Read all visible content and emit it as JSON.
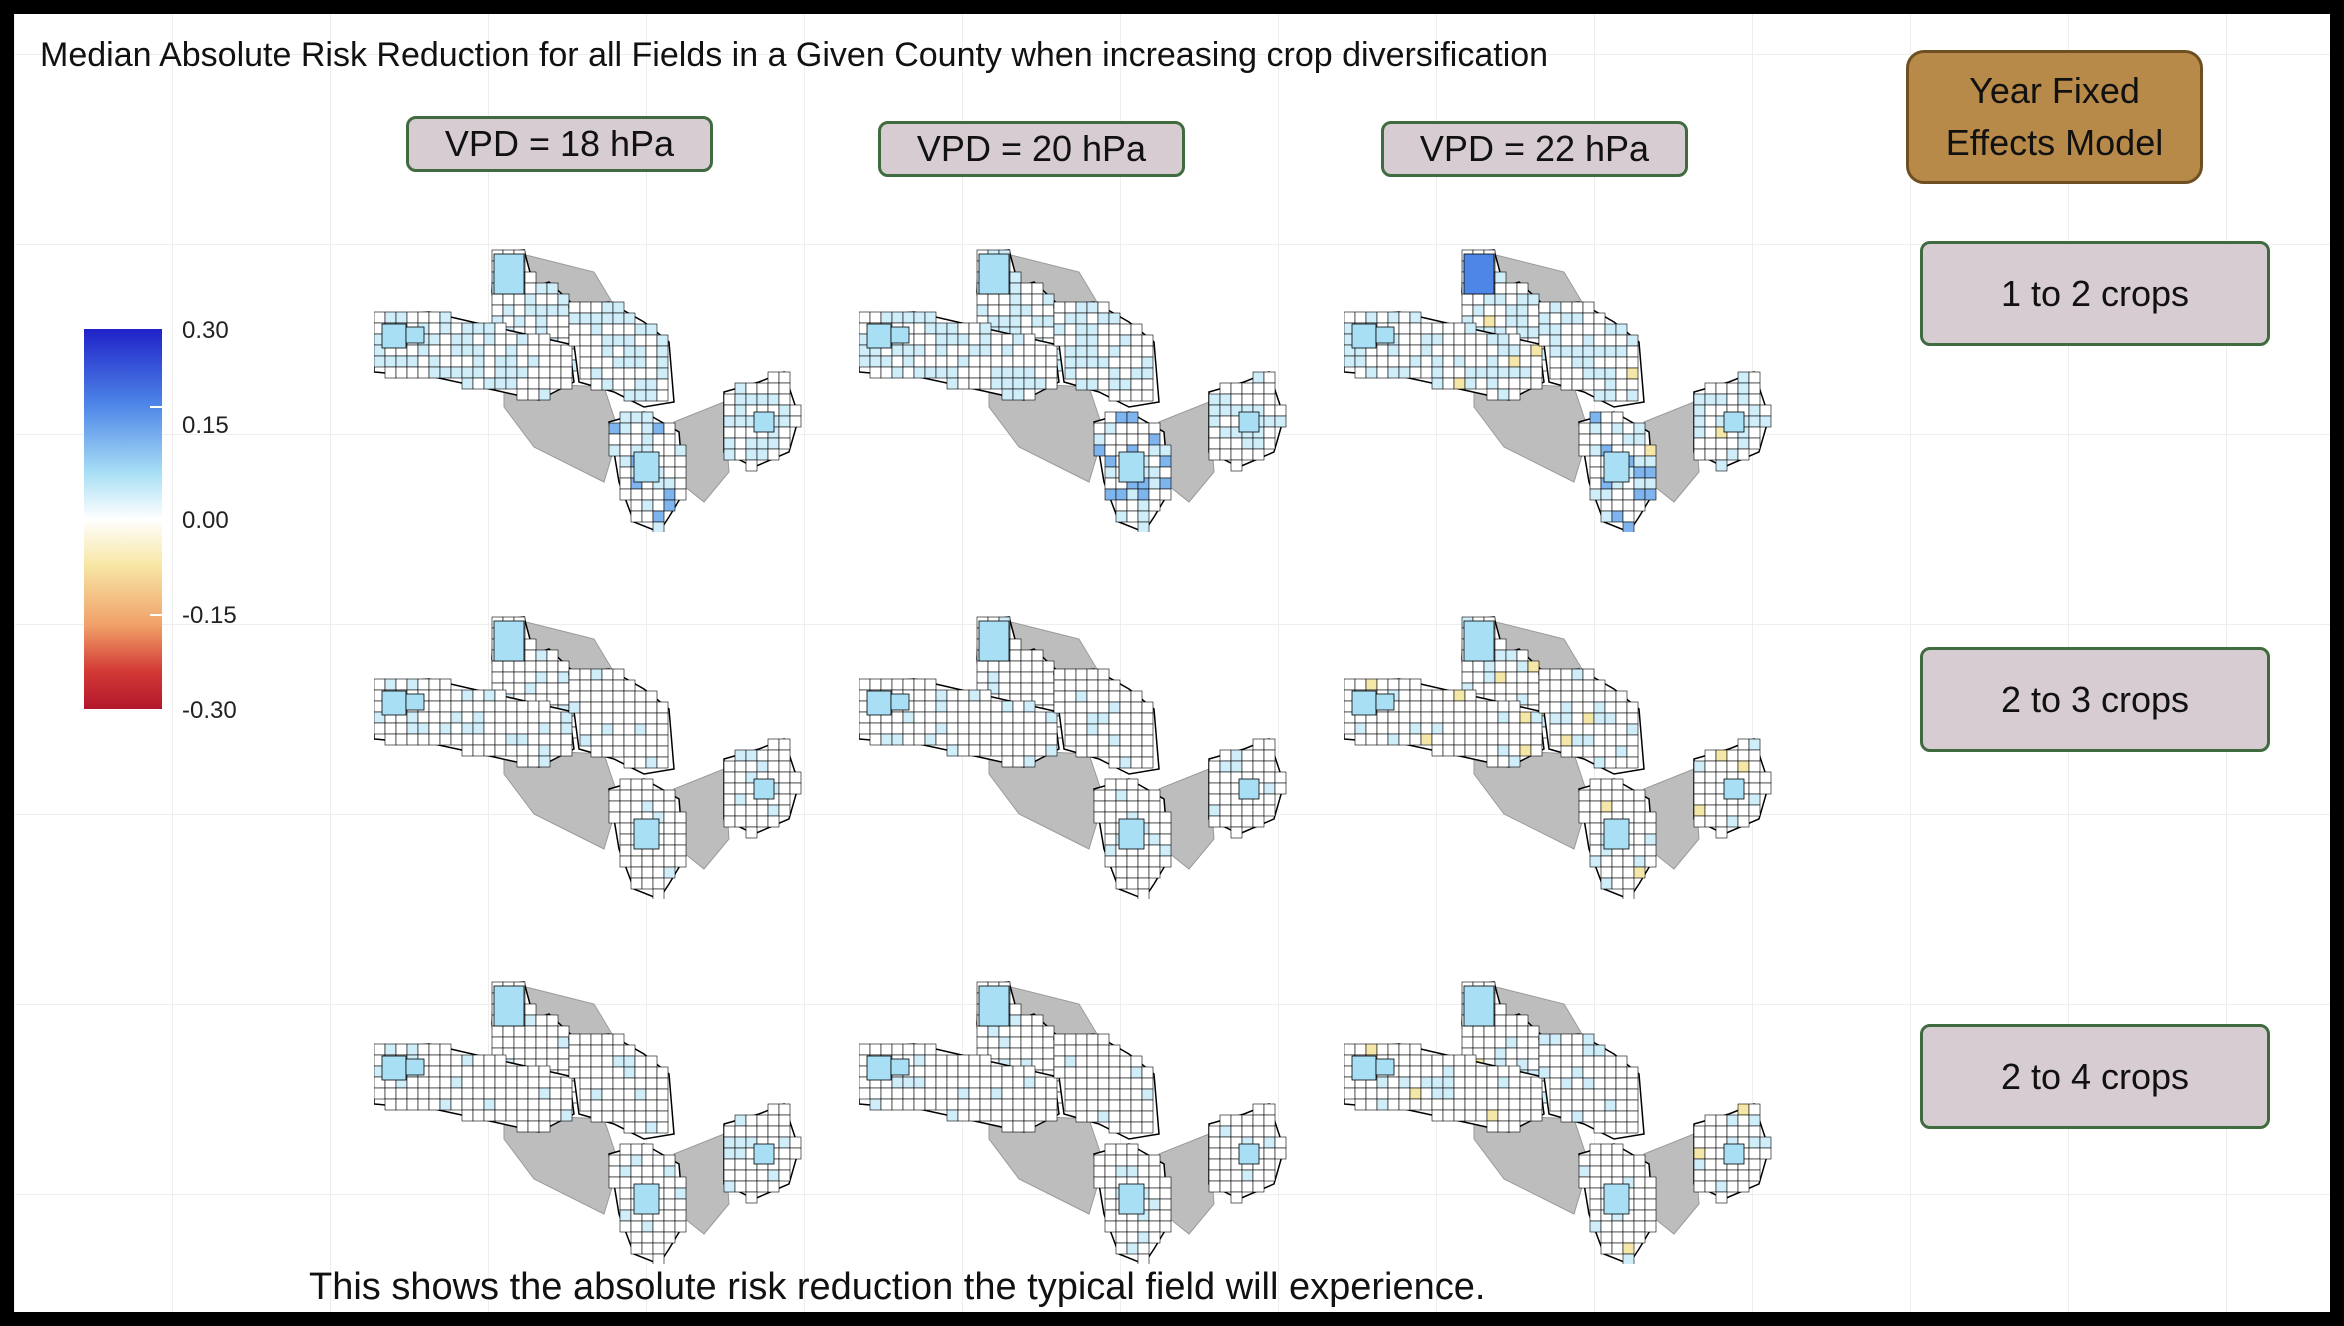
{
  "title": "Median Absolute Risk Reduction for all Fields in a Given County when increasing crop diversification",
  "caption": "This shows the absolute risk reduction the typical field will experience.",
  "model_label": "Year Fixed Effects Model",
  "columns": [
    {
      "label": "VPD = 18 hPa"
    },
    {
      "label": "VPD = 20 hPa"
    },
    {
      "label": "VPD = 22 hPa"
    }
  ],
  "rows": [
    {
      "label": "1 to 2 crops"
    },
    {
      "label": "2 to 3 crops"
    },
    {
      "label": "2 to 4 crops"
    }
  ],
  "legend": {
    "ticks": [
      "0.30",
      "0.15",
      "0.00",
      "-0.15",
      "-0.30"
    ],
    "range": [
      -0.3,
      0.3
    ]
  },
  "colors": {
    "background_state": "#bdbdbd",
    "county_border": "#000000",
    "positive_high": "#1f22c8",
    "positive_mid": "#a9dff5",
    "zero": "#ffffff",
    "negative_mid": "#f7e7a6",
    "negative_high": "#b2172b",
    "row_label_fill": "#d6ccd2",
    "model_label_fill": "#b88a4a"
  }
}
